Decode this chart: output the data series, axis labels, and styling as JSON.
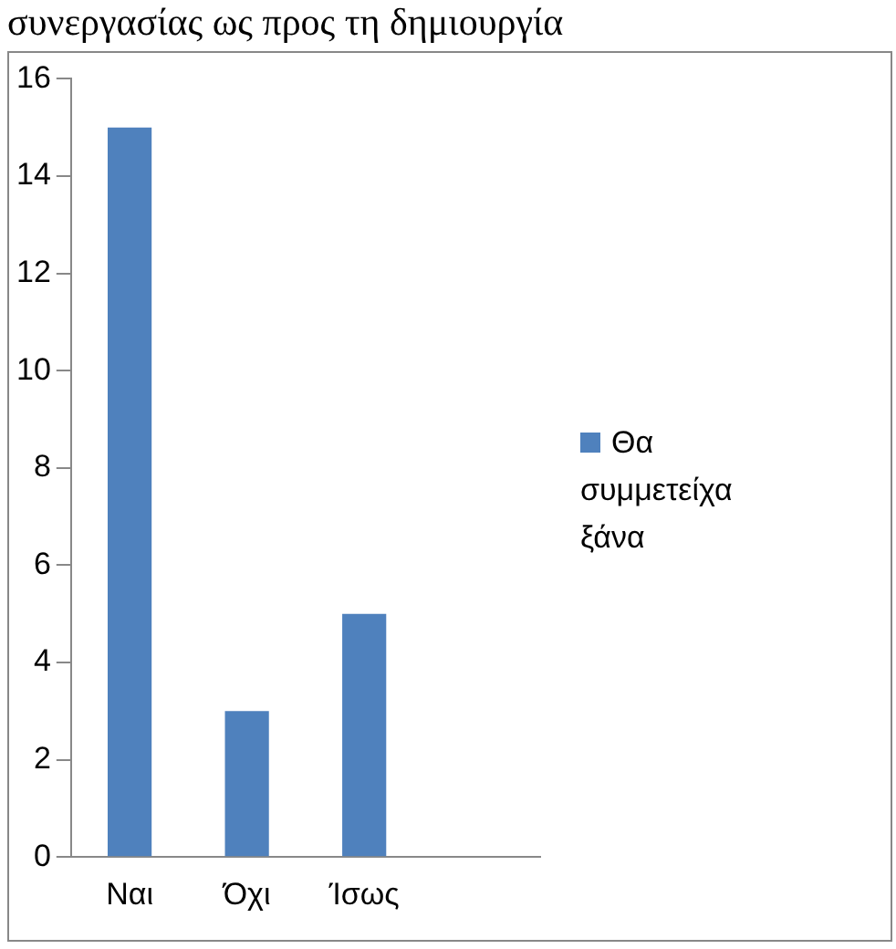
{
  "chart_data": {
    "type": "bar",
    "title": "συνεργασίας ως προς τη δημιουργία",
    "categories": [
      "Ναι",
      "Όχι",
      "Ίσως",
      null
    ],
    "series": [
      {
        "name": "Θα συμμετείχα ξάνα",
        "color": "#4f81bd",
        "values": [
          15,
          3,
          5,
          null
        ]
      }
    ],
    "ylim": [
      0,
      16
    ],
    "yticks": [
      0,
      2,
      4,
      6,
      8,
      10,
      12,
      14,
      16
    ],
    "grid": false,
    "legend": "right"
  }
}
